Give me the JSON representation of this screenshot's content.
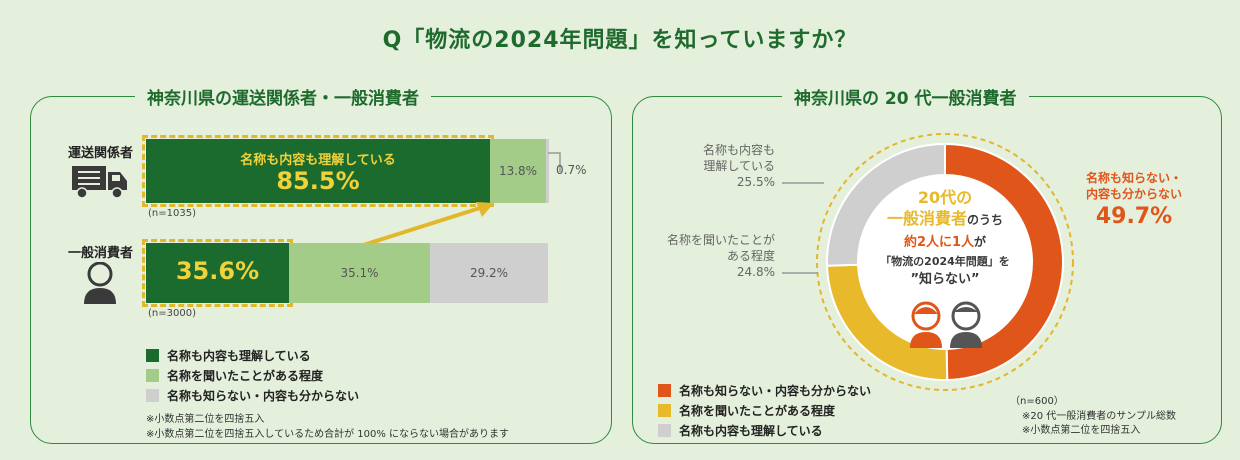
{
  "header": {
    "title": "Q「物流の2024年問題」を知っていますか？"
  },
  "left_panel": {
    "title": "神奈川県の運送関係者・一般消費者",
    "rows": [
      {
        "label": "運送関係者",
        "n": "(n=1035)",
        "dark_caption": "名称も内容も理解している",
        "dark_value": "85.5%",
        "light_value": "13.8%",
        "gray_value": "0.7%"
      },
      {
        "label": "一般消費者",
        "n": "(n=3000)",
        "dark_value": "35.6%",
        "light_value": "35.1%",
        "gray_value": "29.2%"
      }
    ],
    "legend": [
      "名称も内容も理解している",
      "名称を聞いたことがある程度",
      "名称も知らない・内容も分からない"
    ],
    "notes": [
      "※小数点第二位を四捨五入",
      "※小数点第二位を四捨五入しているため合計が 100% にならない場合があります"
    ]
  },
  "right_panel": {
    "title": "神奈川県の 20 代一般消費者",
    "labels": {
      "understand": [
        "名称も内容も",
        "理解している",
        "25.5%"
      ],
      "heard": [
        "名称を聞いたことが",
        "ある程度",
        "24.8%"
      ],
      "unknown": [
        "名称も知らない・",
        "内容も分からない",
        "49.7%"
      ]
    },
    "center": {
      "line1": "20代の",
      "line2a": "一般消費者",
      "line2b": "のうち",
      "line3a": "約2人に1人",
      "line3b": "が",
      "line4": "「物流の2024年問題」を",
      "line5": "”知らない”"
    },
    "legend": [
      "名称も知らない・内容も分からない",
      "名称を聞いたことがある程度",
      "名称も内容も理解している"
    ],
    "notes": [
      "（n=600）",
      "※20 代一般消費者のサンプル総数",
      "※小数点第二位を四捨五入"
    ]
  },
  "colors": {
    "dark_green": "#1b6b2e",
    "light_green": "#a3cc88",
    "gray": "#cfcfcf",
    "orange": "#e0561a",
    "yellow": "#e8b92b",
    "title_green": "#1f6b2e"
  },
  "chart_data": [
    {
      "type": "bar",
      "orientation": "horizontal-stacked",
      "categories": [
        "運送関係者",
        "一般消費者"
      ],
      "series": [
        {
          "name": "名称も内容も理解している",
          "values": [
            85.5,
            35.6
          ]
        },
        {
          "name": "名称を聞いたことがある程度",
          "values": [
            13.8,
            35.1
          ]
        },
        {
          "name": "名称も知らない・内容も分からない",
          "values": [
            0.7,
            29.2
          ]
        }
      ],
      "xlim": [
        0,
        100
      ],
      "legend_position": "bottom-left"
    },
    {
      "type": "pie",
      "style": "donut",
      "categories": [
        "名称も知らない・内容も分からない",
        "名称を聞いたことがある程度",
        "名称も内容も理解している"
      ],
      "values": [
        49.7,
        24.8,
        25.5
      ],
      "legend_position": "bottom-left"
    }
  ]
}
